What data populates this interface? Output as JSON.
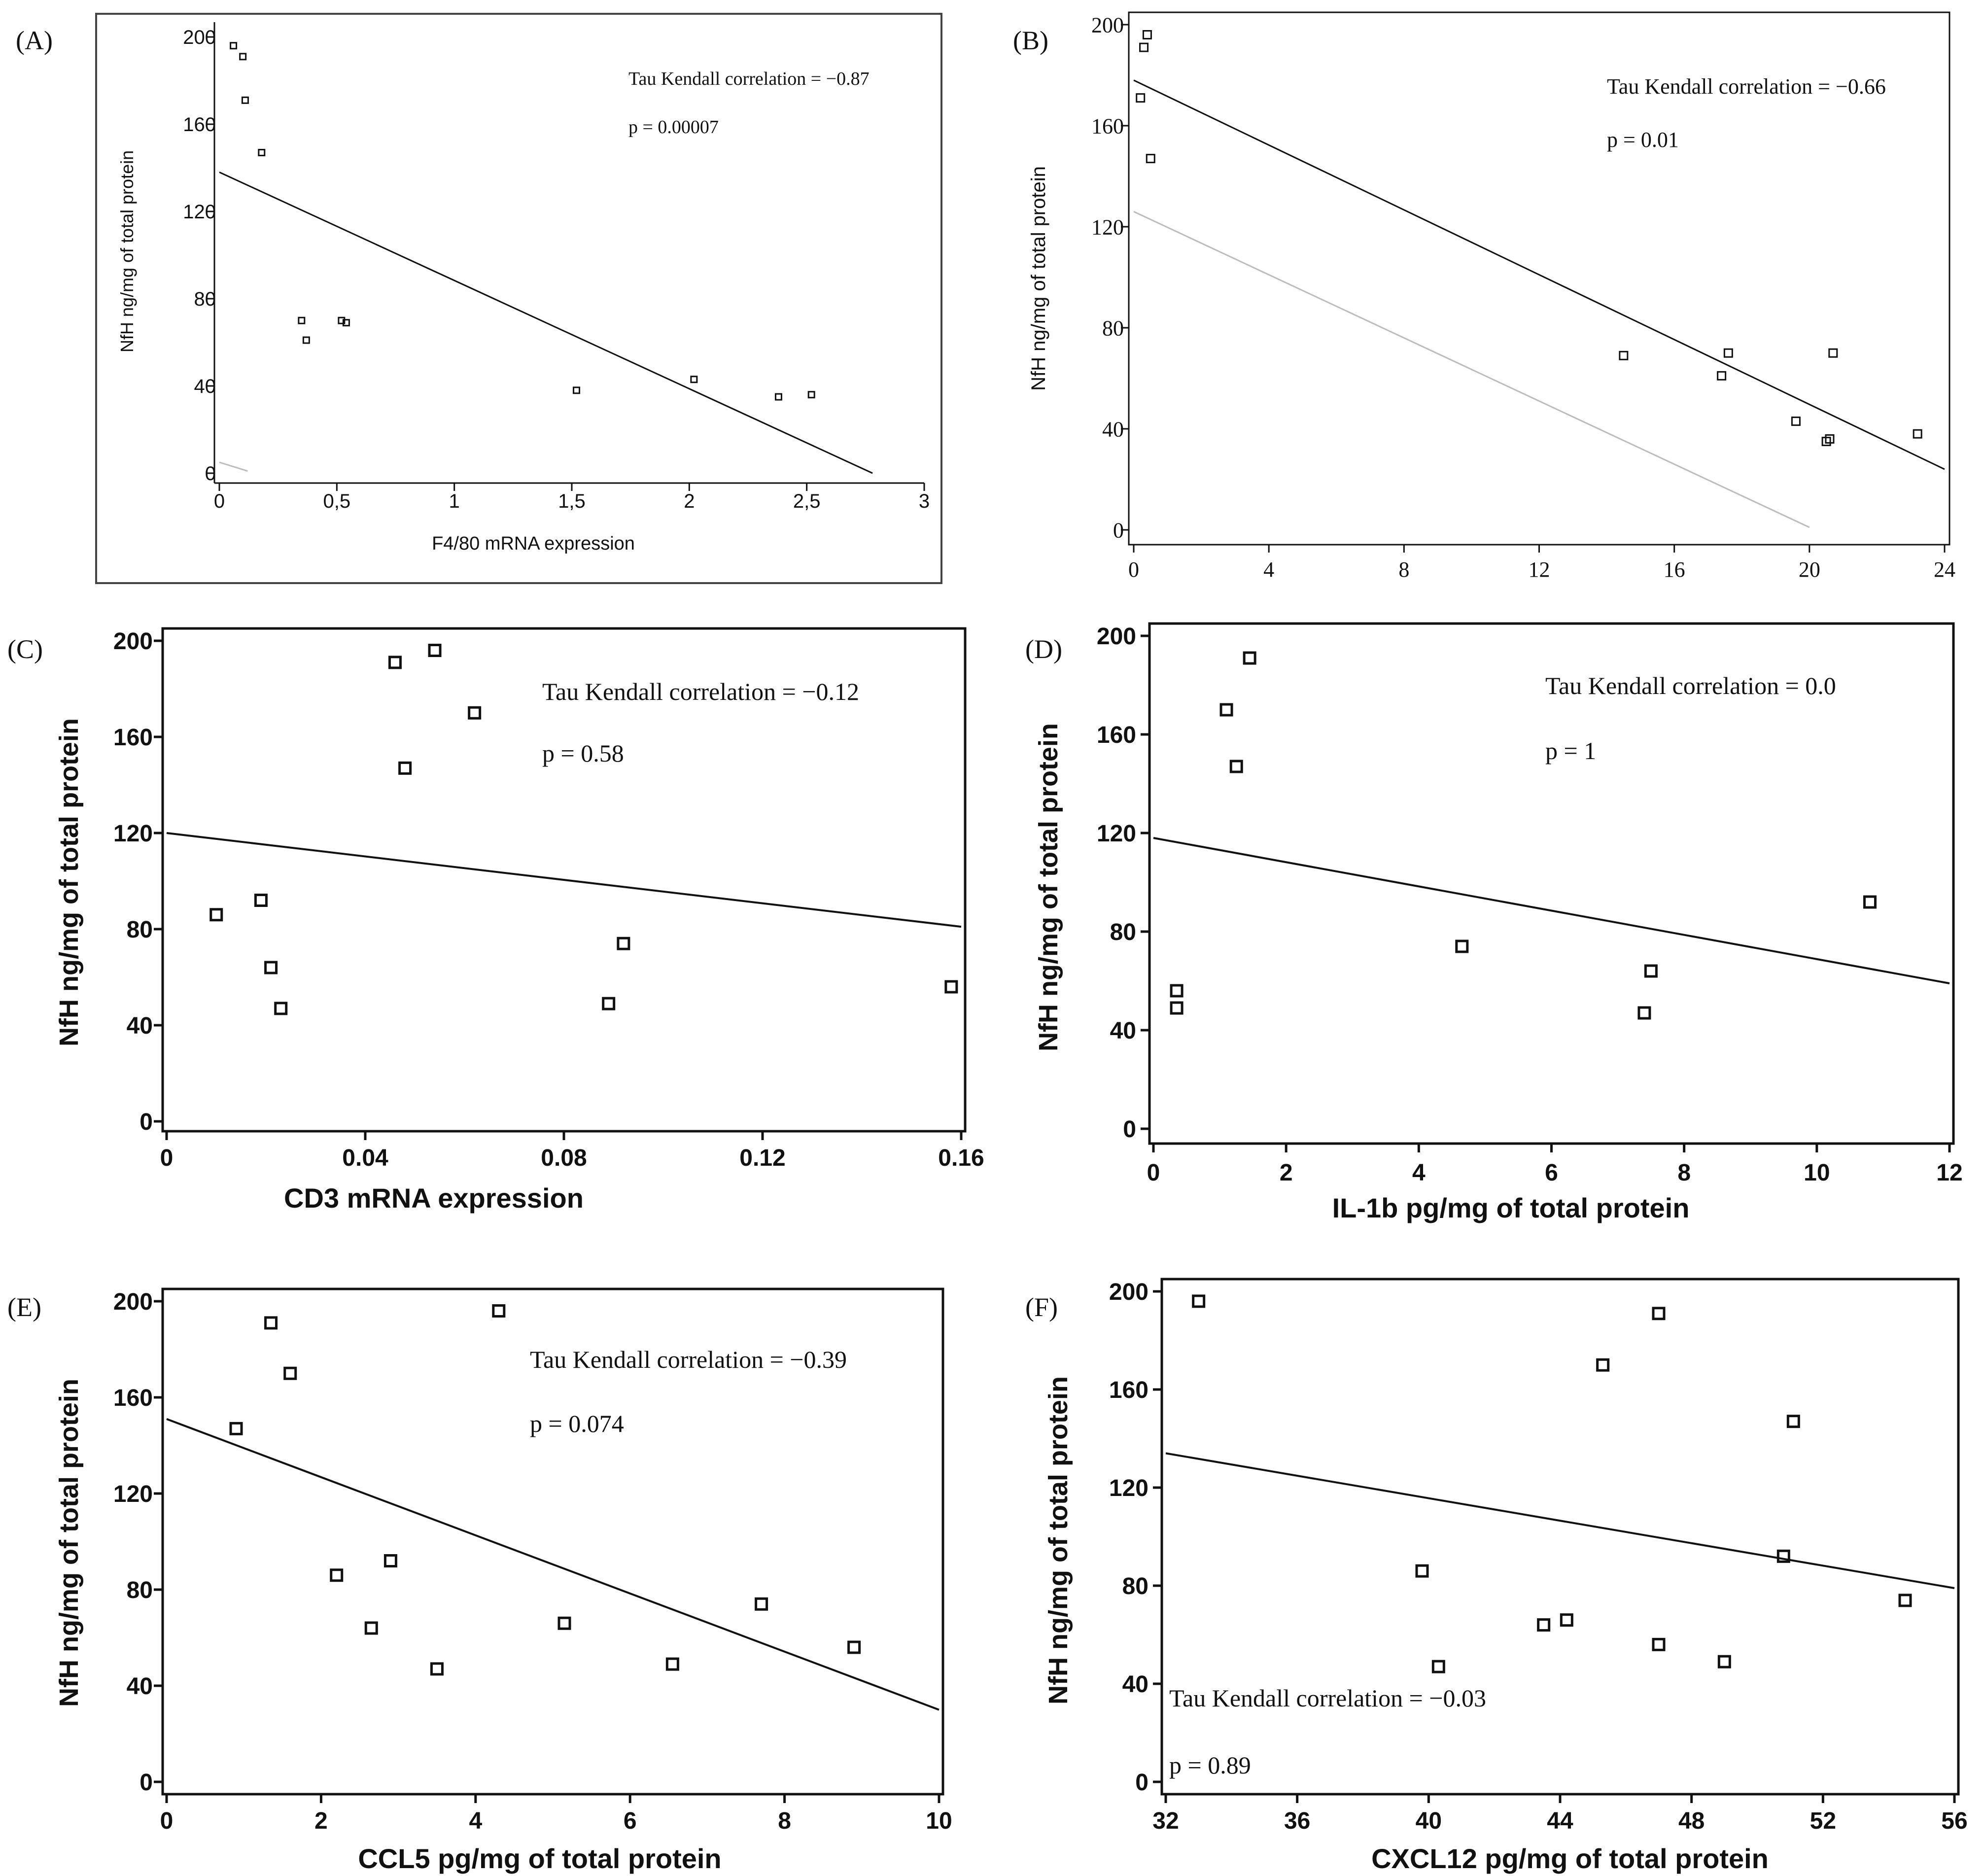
{
  "colors": {
    "ink": "#111111",
    "frame": "#444444",
    "fit_light": "#bdbdbd",
    "background": "#ffffff"
  },
  "chart_data": [
    {
      "panel": "(A)",
      "type": "scatter",
      "title": "",
      "xlabel": "F4/80 mRNA expression",
      "ylabel": "NfH ng/mg of total protein",
      "xlim": [
        0,
        3
      ],
      "ylim": [
        0,
        200
      ],
      "xticks": [
        "0",
        "0,5",
        "1",
        "1,5",
        "2",
        "2,5",
        "3"
      ],
      "yticks": [
        "0",
        "40",
        "80",
        "120",
        "160",
        "200"
      ],
      "points": [
        [
          0.06,
          196
        ],
        [
          0.1,
          191
        ],
        [
          0.11,
          171
        ],
        [
          0.18,
          147
        ],
        [
          0.35,
          70
        ],
        [
          0.37,
          61
        ],
        [
          0.52,
          70
        ],
        [
          0.54,
          69
        ],
        [
          1.52,
          38
        ],
        [
          2.02,
          43
        ],
        [
          2.38,
          35
        ],
        [
          2.52,
          36
        ]
      ],
      "fits": [
        {
          "x": [
            0,
            2.78
          ],
          "y": [
            138,
            0
          ],
          "style": "dark"
        },
        {
          "x": [
            0,
            0.12
          ],
          "y": [
            5,
            1
          ],
          "style": "light"
        }
      ],
      "annotations": [
        "Tau Kendall correlation = −0.87",
        "p = 0.00007"
      ],
      "frame": true
    },
    {
      "panel": "(B)",
      "type": "scatter",
      "title": "",
      "xlabel": "",
      "ylabel": "NfH ng/mg of total protein",
      "xlim": [
        0,
        24
      ],
      "ylim": [
        0,
        200
      ],
      "xticks": [
        "0",
        "4",
        "8",
        "12",
        "16",
        "20",
        "24"
      ],
      "yticks": [
        "0",
        "40",
        "80",
        "120",
        "160",
        "200"
      ],
      "points": [
        [
          0.4,
          196
        ],
        [
          0.3,
          191
        ],
        [
          0.2,
          171
        ],
        [
          0.5,
          147
        ],
        [
          14.5,
          69
        ],
        [
          17.4,
          61
        ],
        [
          17.6,
          70
        ],
        [
          19.6,
          43
        ],
        [
          20.5,
          35
        ],
        [
          20.6,
          36
        ],
        [
          20.7,
          70
        ],
        [
          23.2,
          38
        ]
      ],
      "fits": [
        {
          "x": [
            0,
            24
          ],
          "y": [
            178,
            24
          ],
          "style": "dark"
        },
        {
          "x": [
            0,
            20
          ],
          "y": [
            126,
            1
          ],
          "style": "light"
        }
      ],
      "annotations": [
        "Tau Kendall correlation = −0.66",
        "p = 0.01"
      ],
      "frame": false
    },
    {
      "panel": "(C)",
      "type": "scatter",
      "title": "",
      "xlabel": "CD3 mRNA expression",
      "ylabel": "NfH ng/mg of total protein",
      "xlim": [
        0,
        0.16
      ],
      "ylim": [
        0,
        200
      ],
      "xticks": [
        "0",
        "0.04",
        "0.08",
        "0.12",
        "0.16"
      ],
      "yticks": [
        "0",
        "40",
        "80",
        "120",
        "160",
        "200"
      ],
      "points": [
        [
          0.01,
          86
        ],
        [
          0.019,
          92
        ],
        [
          0.021,
          64
        ],
        [
          0.023,
          47
        ],
        [
          0.046,
          191
        ],
        [
          0.048,
          147
        ],
        [
          0.054,
          196
        ],
        [
          0.062,
          170
        ],
        [
          0.089,
          49
        ],
        [
          0.092,
          74
        ],
        [
          0.158,
          56
        ]
      ],
      "fits": [
        {
          "x": [
            0,
            0.16
          ],
          "y": [
            120,
            81
          ],
          "style": "dark"
        }
      ],
      "annotations": [
        "Tau Kendall correlation = −0.12",
        "p = 0.58"
      ],
      "frame": false
    },
    {
      "panel": "(D)",
      "type": "scatter",
      "title": "",
      "xlabel": "IL-1b pg/mg of total protein",
      "ylabel": "NfH ng/mg of total protein",
      "xlim": [
        0,
        12
      ],
      "ylim": [
        0,
        200
      ],
      "xticks": [
        "0",
        "2",
        "4",
        "6",
        "8",
        "10",
        "12"
      ],
      "yticks": [
        "0",
        "40",
        "80",
        "120",
        "160",
        "200"
      ],
      "points": [
        [
          0.35,
          56
        ],
        [
          0.35,
          49
        ],
        [
          1.1,
          170
        ],
        [
          1.25,
          147
        ],
        [
          1.45,
          191
        ],
        [
          4.65,
          74
        ],
        [
          7.4,
          47
        ],
        [
          7.5,
          64
        ],
        [
          10.8,
          92
        ]
      ],
      "fits": [
        {
          "x": [
            0,
            12
          ],
          "y": [
            118,
            59
          ],
          "style": "dark"
        }
      ],
      "annotations": [
        "Tau Kendall correlation = 0.0",
        "p = 1"
      ],
      "frame": false
    },
    {
      "panel": "(E)",
      "type": "scatter",
      "title": "",
      "xlabel": "CCL5 pg/mg of total protein",
      "ylabel": "NfH ng/mg of total protein",
      "xlim": [
        0,
        10
      ],
      "ylim": [
        0,
        200
      ],
      "xticks": [
        "0",
        "2",
        "4",
        "6",
        "8",
        "10"
      ],
      "yticks": [
        "0",
        "40",
        "80",
        "120",
        "160",
        "200"
      ],
      "points": [
        [
          0.9,
          147
        ],
        [
          1.35,
          191
        ],
        [
          1.6,
          170
        ],
        [
          2.2,
          86
        ],
        [
          2.65,
          64
        ],
        [
          2.9,
          92
        ],
        [
          3.5,
          47
        ],
        [
          4.3,
          196
        ],
        [
          5.15,
          66
        ],
        [
          6.55,
          49
        ],
        [
          7.7,
          74
        ],
        [
          8.9,
          56
        ]
      ],
      "fits": [
        {
          "x": [
            0,
            10
          ],
          "y": [
            151,
            30
          ],
          "style": "dark"
        }
      ],
      "annotations": [
        "Tau Kendall correlation = −0.39",
        "p = 0.074"
      ],
      "frame": false
    },
    {
      "panel": "(F)",
      "type": "scatter",
      "title": "",
      "xlabel": "CXCL12 pg/mg of total protein",
      "ylabel": "NfH ng/mg of total protein",
      "xlim": [
        32,
        56
      ],
      "ylim": [
        0,
        200
      ],
      "xticks": [
        "32",
        "36",
        "40",
        "44",
        "48",
        "52",
        "56"
      ],
      "yticks": [
        "0",
        "40",
        "80",
        "120",
        "160",
        "200"
      ],
      "points": [
        [
          33,
          196
        ],
        [
          39.8,
          86
        ],
        [
          40.3,
          47
        ],
        [
          43.5,
          64
        ],
        [
          44.2,
          66
        ],
        [
          45.3,
          170
        ],
        [
          47,
          191
        ],
        [
          47,
          56
        ],
        [
          49,
          49
        ],
        [
          50.8,
          92
        ],
        [
          51.1,
          147
        ],
        [
          54.5,
          74
        ]
      ],
      "fits": [
        {
          "x": [
            32,
            56
          ],
          "y": [
            134,
            79
          ],
          "style": "dark"
        }
      ],
      "annotations": [
        "Tau Kendall correlation = −0.03",
        "p = 0.89"
      ],
      "frame": false
    }
  ]
}
